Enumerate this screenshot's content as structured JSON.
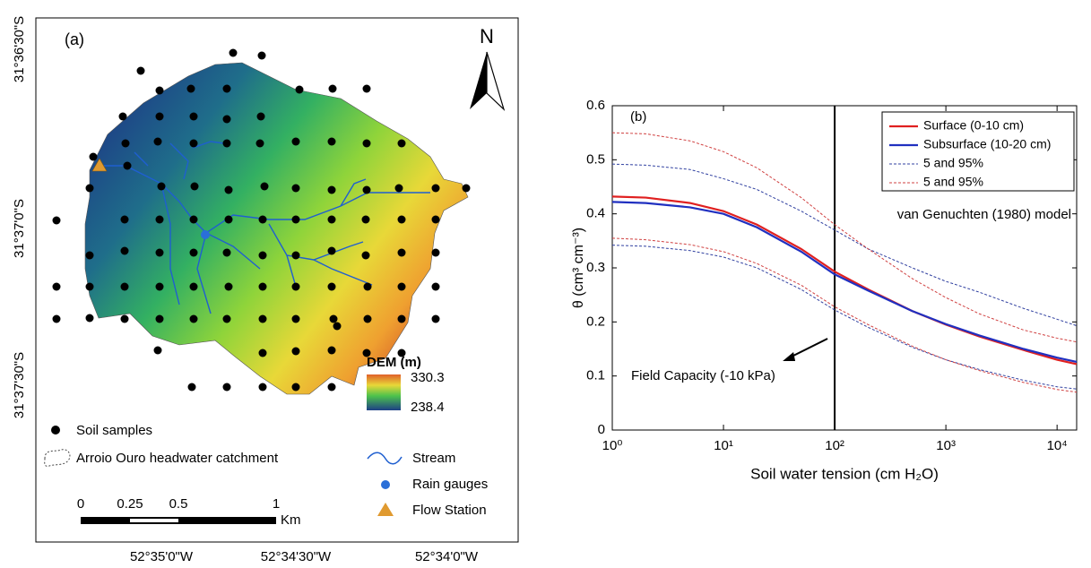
{
  "map": {
    "panel_label": "(a)",
    "north": "N",
    "lat_labels": [
      "31°36'30\"S",
      "31°37'0\"S",
      "31°37'30\"S"
    ],
    "lon_labels": [
      "52°35'0\"W",
      "52°34'30\"W",
      "52°34'0\"W"
    ],
    "dem": {
      "title": "DEM (m)",
      "max": "330.3",
      "min": "238.4"
    },
    "legend": {
      "soil_samples": "Soil samples",
      "catchment": "Arroio Ouro headwater catchment",
      "stream": "Stream",
      "rain_gauges": "Rain gauges",
      "flow_station": "Flow Station"
    },
    "scale_bar": {
      "labels": [
        "0",
        "0.25",
        "0.5",
        "1"
      ],
      "unit": "Km"
    }
  },
  "chart_data": {
    "type": "line",
    "panel_label": "(b)",
    "x_label": "Soil water tension (cm H₂O)",
    "y_label": "θ (cm³ cm⁻³)",
    "annotation": "van Genuchten (1980) model",
    "vline": {
      "x": 100,
      "label": "Field Capacity (-10 kPa)"
    },
    "log_x": true,
    "x": [
      1,
      2,
      5,
      10,
      20,
      50,
      100,
      200,
      500,
      1000,
      2000,
      5000,
      10000,
      15000
    ],
    "xlim": [
      1,
      15000
    ],
    "xticks": [
      {
        "value": 1,
        "label": "10⁰"
      },
      {
        "value": 10,
        "label": "10¹"
      },
      {
        "value": 100,
        "label": "10²"
      },
      {
        "value": 1000,
        "label": "10³"
      },
      {
        "value": 10000,
        "label": "10⁴"
      }
    ],
    "ylim": [
      0,
      0.6
    ],
    "yticks": [
      0,
      0.1,
      0.2,
      0.3,
      0.4,
      0.5,
      0.6
    ],
    "legend_position": "upper right",
    "series": [
      {
        "name": "Surface (0-10 cm)",
        "color": "#e02020",
        "style": "solid",
        "values": [
          0.432,
          0.43,
          0.42,
          0.405,
          0.38,
          0.335,
          0.293,
          0.26,
          0.22,
          0.195,
          0.173,
          0.148,
          0.13,
          0.122
        ]
      },
      {
        "name": "Subsurface (10-20 cm)",
        "color": "#2030c0",
        "style": "solid",
        "values": [
          0.422,
          0.42,
          0.412,
          0.4,
          0.375,
          0.33,
          0.288,
          0.258,
          0.22,
          0.196,
          0.175,
          0.15,
          0.134,
          0.126
        ]
      },
      {
        "name": "5 and 95%",
        "color": "#3040a0",
        "style": "dashed",
        "lower": [
          0.342,
          0.34,
          0.332,
          0.32,
          0.3,
          0.26,
          0.222,
          0.19,
          0.153,
          0.13,
          0.112,
          0.092,
          0.08,
          0.076
        ],
        "upper": [
          0.492,
          0.49,
          0.482,
          0.465,
          0.445,
          0.405,
          0.37,
          0.335,
          0.3,
          0.275,
          0.255,
          0.225,
          0.205,
          0.193
        ]
      },
      {
        "name": "5 and 95%",
        "color": "#d04040",
        "style": "dashed",
        "lower": [
          0.355,
          0.352,
          0.343,
          0.33,
          0.308,
          0.268,
          0.228,
          0.195,
          0.155,
          0.13,
          0.11,
          0.088,
          0.075,
          0.07
        ],
        "upper": [
          0.55,
          0.548,
          0.535,
          0.515,
          0.485,
          0.43,
          0.38,
          0.335,
          0.28,
          0.245,
          0.215,
          0.185,
          0.17,
          0.163
        ]
      }
    ]
  }
}
